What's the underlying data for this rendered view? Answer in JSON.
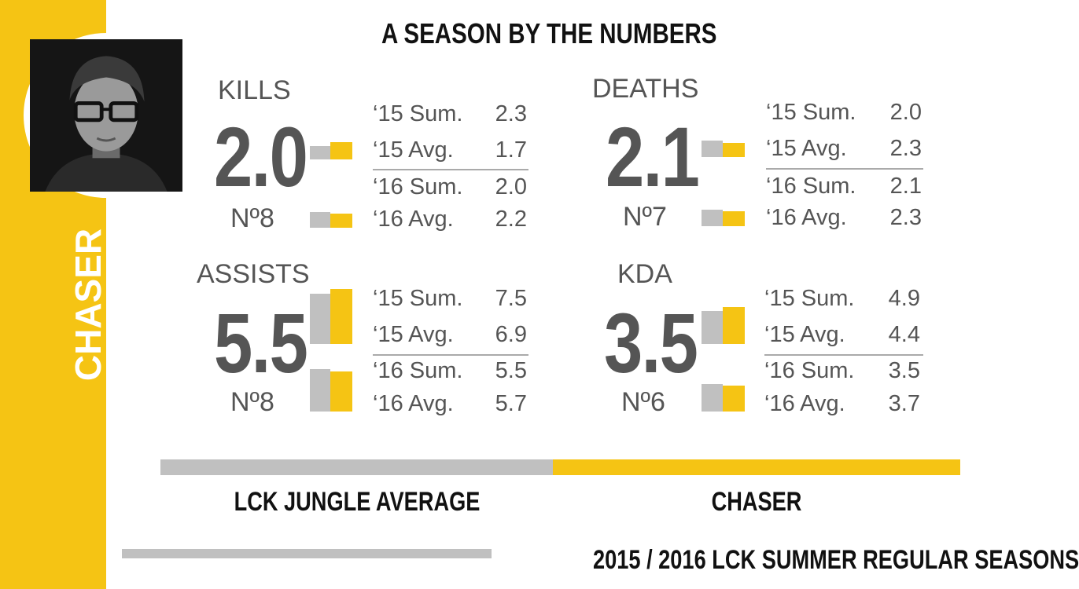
{
  "title": "A SEASON BY THE NUMBERS",
  "player_name": "CHASER",
  "colors": {
    "accent": "#f5c414",
    "comparison": "#c0c0c0",
    "text": "#555555",
    "heading": "#111111"
  },
  "stats": {
    "kills": {
      "label": "KILLS",
      "value": "2.0",
      "rank": "Nº8",
      "rows": [
        {
          "label": "‘15 Sum.",
          "value": "2.3"
        },
        {
          "label": "‘15 Avg.",
          "value": "1.7"
        },
        {
          "label": "‘16 Sum.",
          "value": "2.0"
        },
        {
          "label": "‘16 Avg.",
          "value": "2.2"
        }
      ]
    },
    "deaths": {
      "label": "DEATHS",
      "value": "2.1",
      "rank": "Nº7",
      "rows": [
        {
          "label": "‘15 Sum.",
          "value": "2.0"
        },
        {
          "label": "‘15 Avg.",
          "value": "2.3"
        },
        {
          "label": "‘16 Sum.",
          "value": "2.1"
        },
        {
          "label": "‘16 Avg.",
          "value": "2.3"
        }
      ]
    },
    "assists": {
      "label": "ASSISTS",
      "value": "5.5",
      "rank": "Nº8",
      "rows": [
        {
          "label": "‘15 Sum.",
          "value": "7.5"
        },
        {
          "label": "‘15 Avg.",
          "value": "6.9"
        },
        {
          "label": "‘16 Sum.",
          "value": "5.5"
        },
        {
          "label": "‘16 Avg.",
          "value": "5.7"
        }
      ]
    },
    "kda": {
      "label": "KDA",
      "value": "3.5",
      "rank": "Nº6",
      "rows": [
        {
          "label": "‘15 Sum.",
          "value": "4.9"
        },
        {
          "label": "‘15 Avg.",
          "value": "4.4"
        },
        {
          "label": "‘16 Sum.",
          "value": "3.5"
        },
        {
          "label": "‘16 Avg.",
          "value": "3.7"
        }
      ]
    }
  },
  "legend": {
    "left_label": "LCK JUNGLE AVERAGE",
    "right_label": "CHASER"
  },
  "footer": "2015 / 2016 LCK SUMMER REGULAR SEASONS"
}
